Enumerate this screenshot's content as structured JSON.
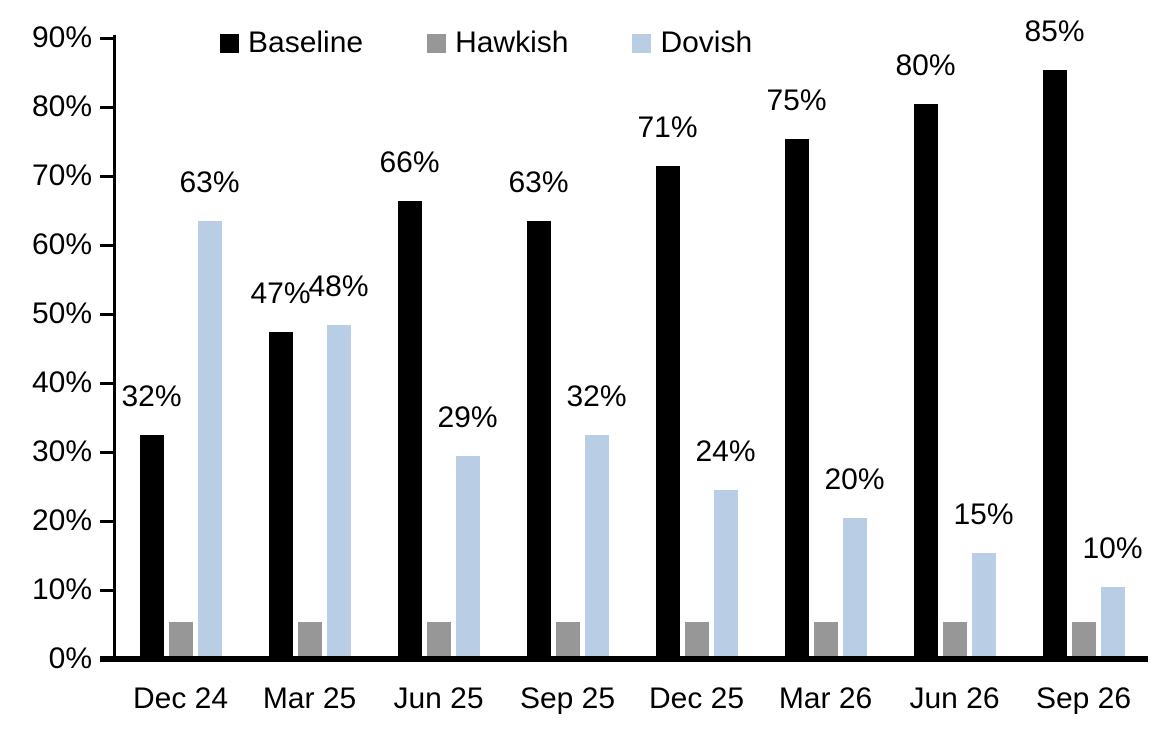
{
  "chart_data": {
    "type": "bar",
    "title": "",
    "xlabel": "",
    "ylabel": "",
    "grid": false,
    "legend_position": "top",
    "categories": [
      "Dec 24",
      "Mar 25",
      "Jun 25",
      "Sep 25",
      "Dec 25",
      "Mar 26",
      "Jun 26",
      "Sep 26"
    ],
    "series": [
      {
        "name": "Baseline",
        "color": "#000000",
        "values": [
          32,
          47,
          66,
          63,
          71,
          75,
          80,
          85
        ],
        "data_labels": [
          "32%",
          "47%",
          "66%",
          "63%",
          "71%",
          "75%",
          "80%",
          "85%"
        ]
      },
      {
        "name": "Hawkish",
        "color": "#979797",
        "values": [
          5,
          5,
          5,
          5,
          5,
          5,
          5,
          5
        ],
        "data_labels": [
          "",
          "",
          "",
          "",
          "",
          "",
          "",
          ""
        ]
      },
      {
        "name": "Dovish",
        "color": "#B9CDE5",
        "values": [
          63,
          48,
          29,
          32,
          24,
          20,
          15,
          10
        ],
        "data_labels": [
          "63%",
          "48%",
          "29%",
          "32%",
          "24%",
          "20%",
          "15%",
          "10%"
        ]
      }
    ],
    "ylim": [
      0,
      90
    ],
    "y_tick_step": 10,
    "y_tick_labels": [
      "0%",
      "10%",
      "20%",
      "30%",
      "40%",
      "50%",
      "60%",
      "70%",
      "80%",
      "90%"
    ]
  }
}
